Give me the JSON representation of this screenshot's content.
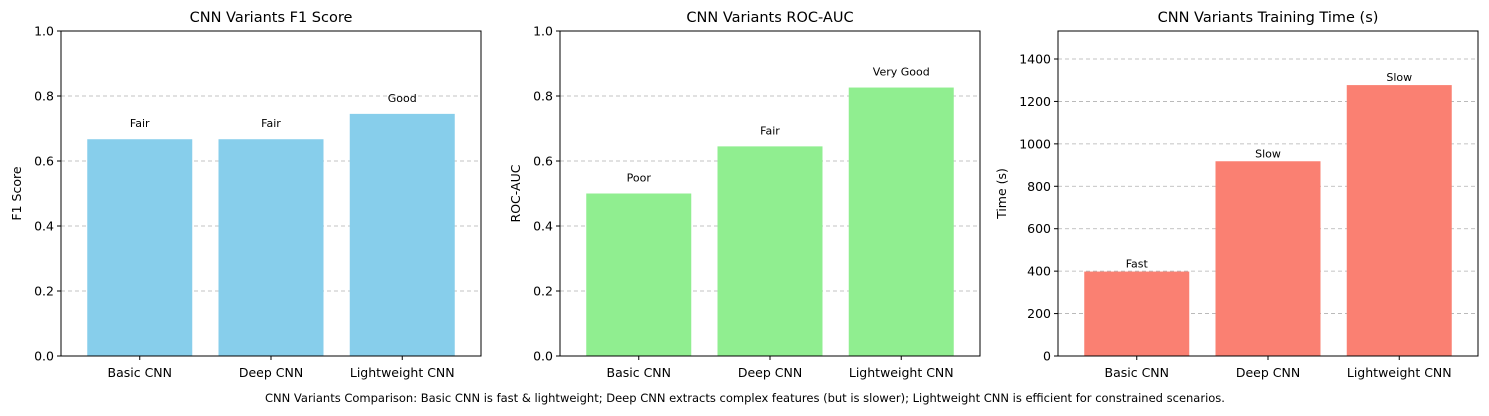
{
  "chart_data": [
    {
      "type": "bar",
      "title": "CNN Variants F1 Score",
      "xlabel": "",
      "ylabel": "F1 Score",
      "categories": [
        "Basic CNN",
        "Deep CNN",
        "Lightweight CNN"
      ],
      "values": [
        0.667,
        0.667,
        0.745
      ],
      "bar_labels": [
        "Fair",
        "Fair",
        "Good"
      ],
      "ylim": [
        0,
        1.0
      ],
      "yticks": [
        0.0,
        0.2,
        0.4,
        0.6,
        0.8,
        1.0
      ],
      "ytick_labels": [
        "0.0",
        "0.2",
        "0.4",
        "0.6",
        "0.8",
        "1.0"
      ],
      "color": "#87ceeb",
      "grid": "y-dashed"
    },
    {
      "type": "bar",
      "title": "CNN Variants ROC-AUC",
      "xlabel": "",
      "ylabel": "ROC-AUC",
      "categories": [
        "Basic CNN",
        "Deep CNN",
        "Lightweight CNN"
      ],
      "values": [
        0.5,
        0.645,
        0.826
      ],
      "bar_labels": [
        "Poor",
        "Fair",
        "Very Good"
      ],
      "ylim": [
        0,
        1.0
      ],
      "yticks": [
        0.0,
        0.2,
        0.4,
        0.6,
        0.8,
        1.0
      ],
      "ytick_labels": [
        "0.0",
        "0.2",
        "0.4",
        "0.6",
        "0.8",
        "1.0"
      ],
      "color": "#90ee90",
      "grid": "y-dashed"
    },
    {
      "type": "bar",
      "title": "CNN Variants Training Time (s)",
      "xlabel": "",
      "ylabel": "Time (s)",
      "categories": [
        "Basic CNN",
        "Deep CNN",
        "Lightweight CNN"
      ],
      "values": [
        398,
        918,
        1277
      ],
      "bar_labels": [
        "Fast",
        "Slow",
        "Slow"
      ],
      "ylim": [
        0,
        1532
      ],
      "yticks": [
        0,
        200,
        400,
        600,
        800,
        1000,
        1200,
        1400
      ],
      "ytick_labels": [
        "0",
        "200",
        "400",
        "600",
        "800",
        "1000",
        "1200",
        "1400"
      ],
      "color": "#fa8072",
      "grid": "y-dashed"
    }
  ],
  "caption": "CNN Variants Comparison: Basic CNN is fast & lightweight; Deep CNN extracts complex features (but is slower); Lightweight CNN is efficient for constrained scenarios."
}
